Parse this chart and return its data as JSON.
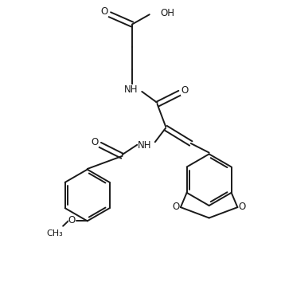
{
  "bg_color": "#ffffff",
  "line_color": "#1a1a1a",
  "line_width": 1.4,
  "font_size": 8.5,
  "figsize": [
    3.53,
    3.74
  ],
  "dpi": 100,
  "xlim": [
    0,
    10
  ],
  "ylim": [
    0,
    10.5
  ]
}
